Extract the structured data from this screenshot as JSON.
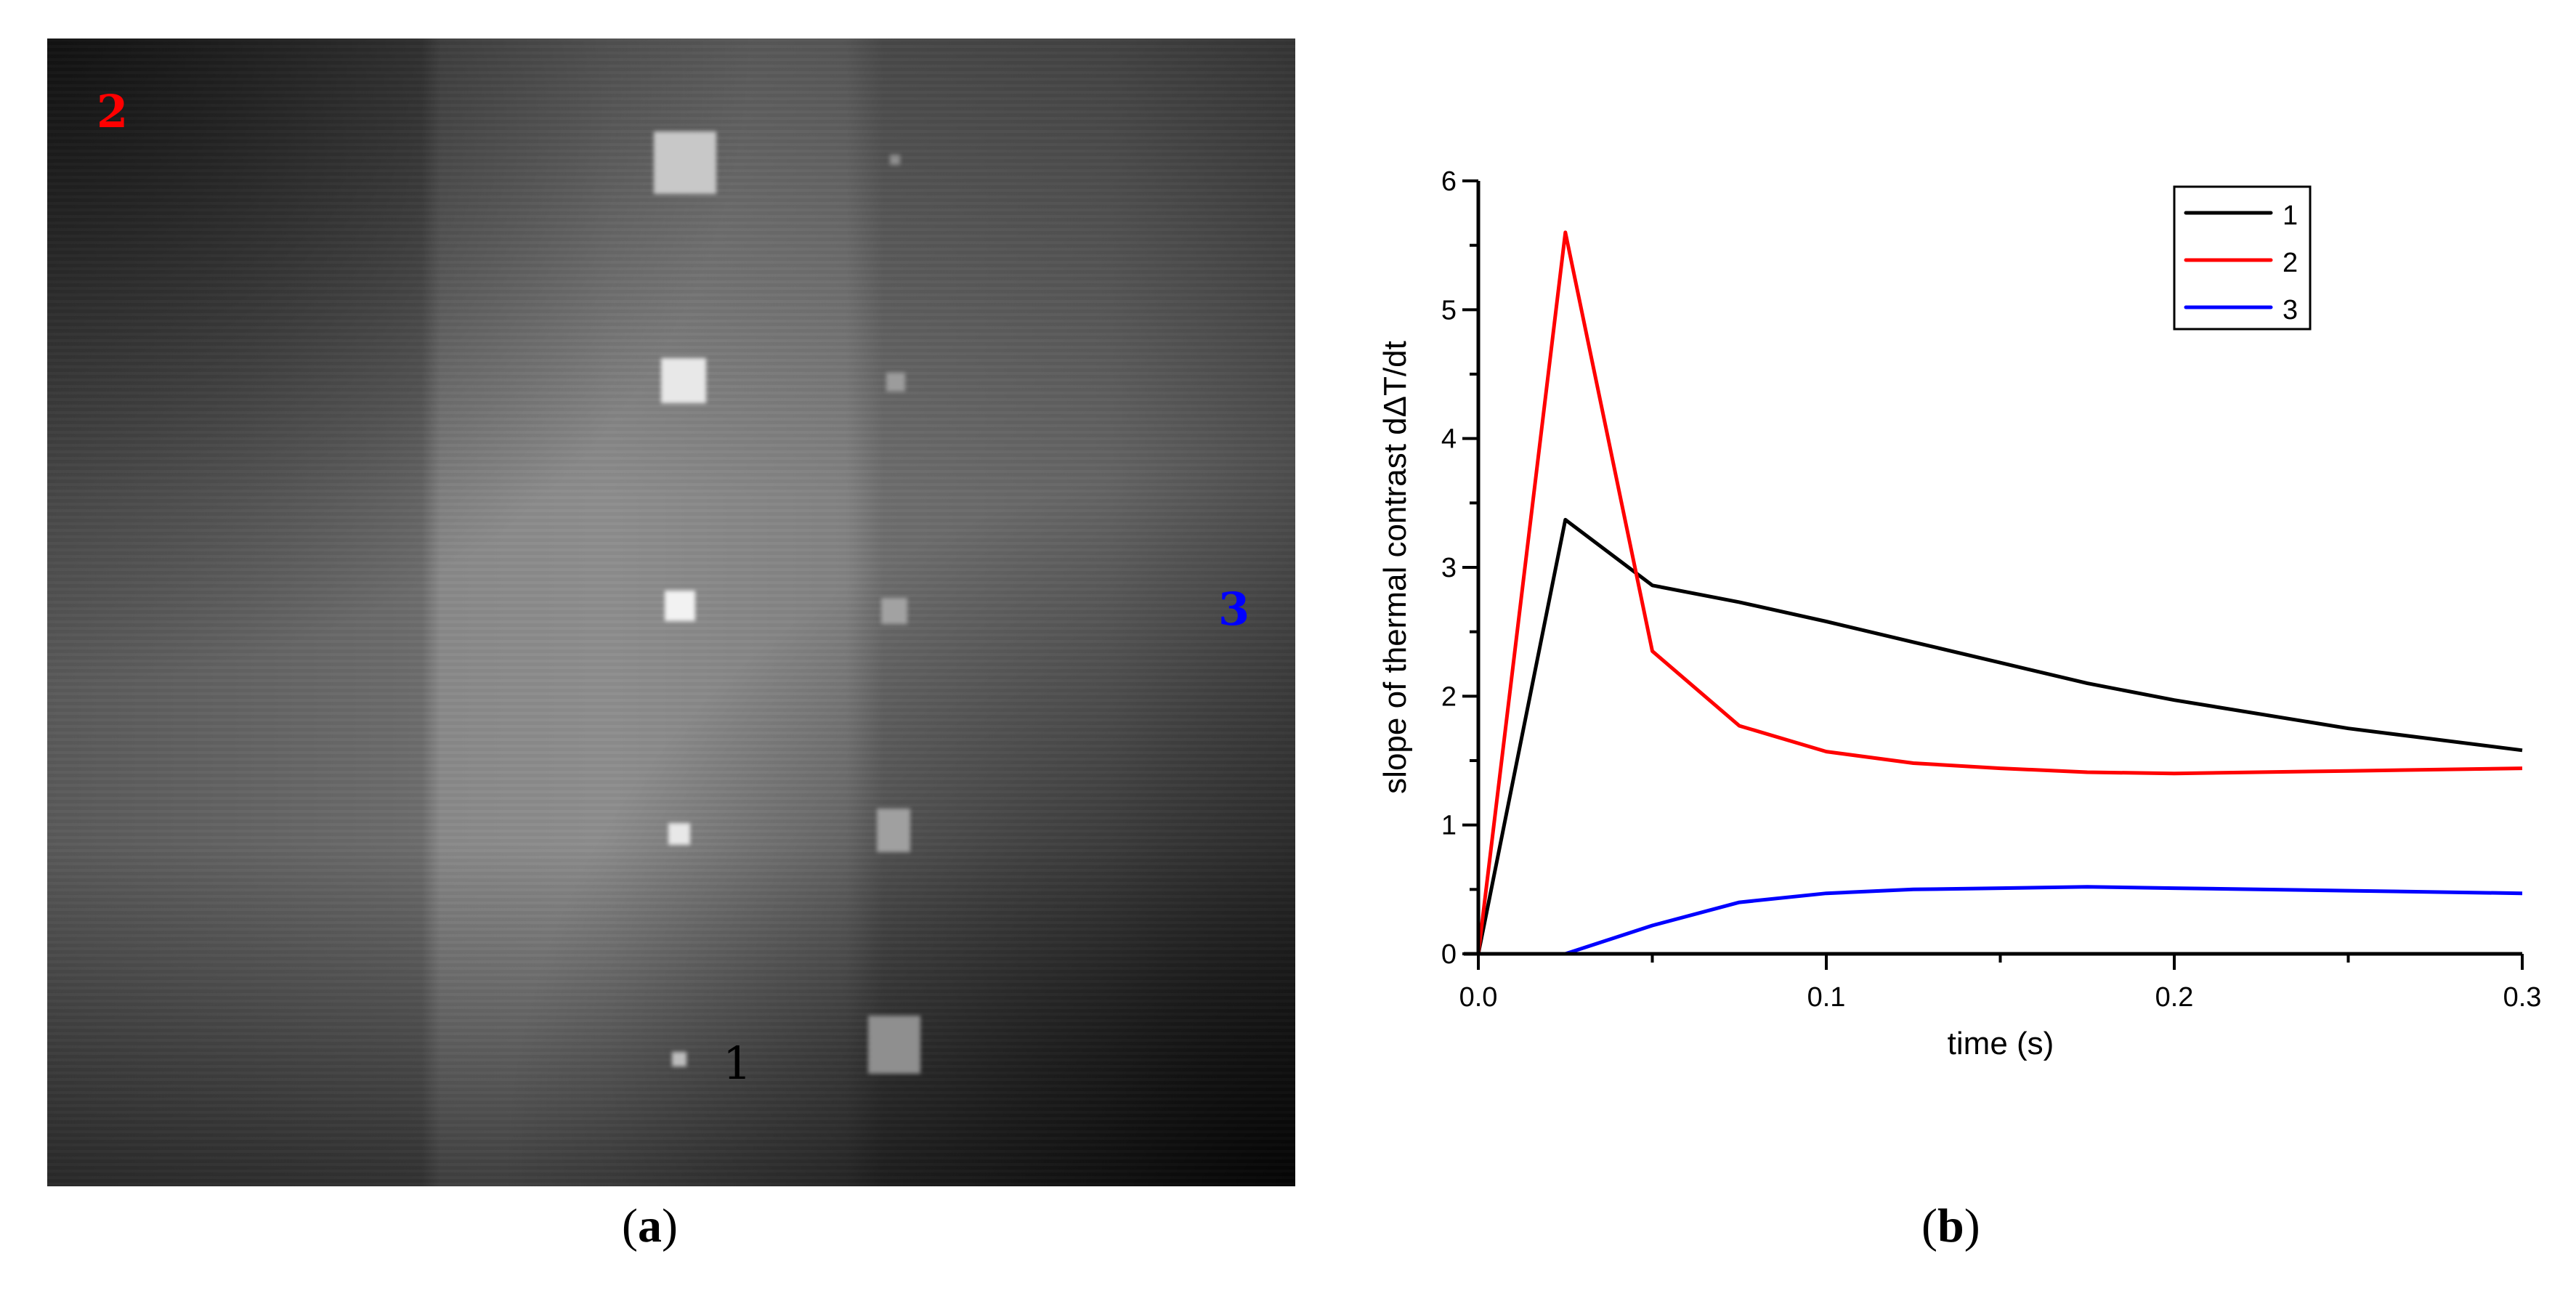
{
  "panel_a": {
    "caption": "a",
    "caption_open": "(",
    "caption_close": ")",
    "region_labels": [
      {
        "text": "2",
        "color": "#ff0000"
      },
      {
        "text": "3",
        "color": "#0000ff"
      },
      {
        "text": "1",
        "color": "#000000"
      }
    ]
  },
  "panel_b": {
    "caption": "b",
    "caption_open": "(",
    "caption_close": ")"
  },
  "chart_data": {
    "type": "line",
    "title": "",
    "xlabel": "time (s)",
    "ylabel": "slope of thermal contrast dΔT/dt",
    "xlim": [
      0.0,
      0.3
    ],
    "ylim": [
      0,
      6
    ],
    "x_ticks": [
      "0.0",
      "0.1",
      "0.2",
      "0.3"
    ],
    "y_ticks": [
      "0",
      "1",
      "2",
      "3",
      "4",
      "5",
      "6"
    ],
    "grid": false,
    "legend_position": "upper right",
    "x": [
      0.0,
      0.025,
      0.05,
      0.075,
      0.1,
      0.125,
      0.15,
      0.175,
      0.2,
      0.25,
      0.3
    ],
    "series": [
      {
        "name": "1",
        "color": "#000000",
        "values": [
          0.0,
          3.37,
          2.86,
          2.73,
          2.58,
          2.42,
          2.26,
          2.1,
          1.97,
          1.75,
          1.58
        ]
      },
      {
        "name": "2",
        "color": "#ff0000",
        "values": [
          0.0,
          5.6,
          2.35,
          1.77,
          1.57,
          1.48,
          1.44,
          1.41,
          1.4,
          1.42,
          1.44
        ]
      },
      {
        "name": "3",
        "color": "#0000ff",
        "values": [
          0.0,
          0.0,
          0.22,
          0.4,
          0.47,
          0.5,
          0.51,
          0.52,
          0.51,
          0.49,
          0.47
        ]
      }
    ]
  }
}
